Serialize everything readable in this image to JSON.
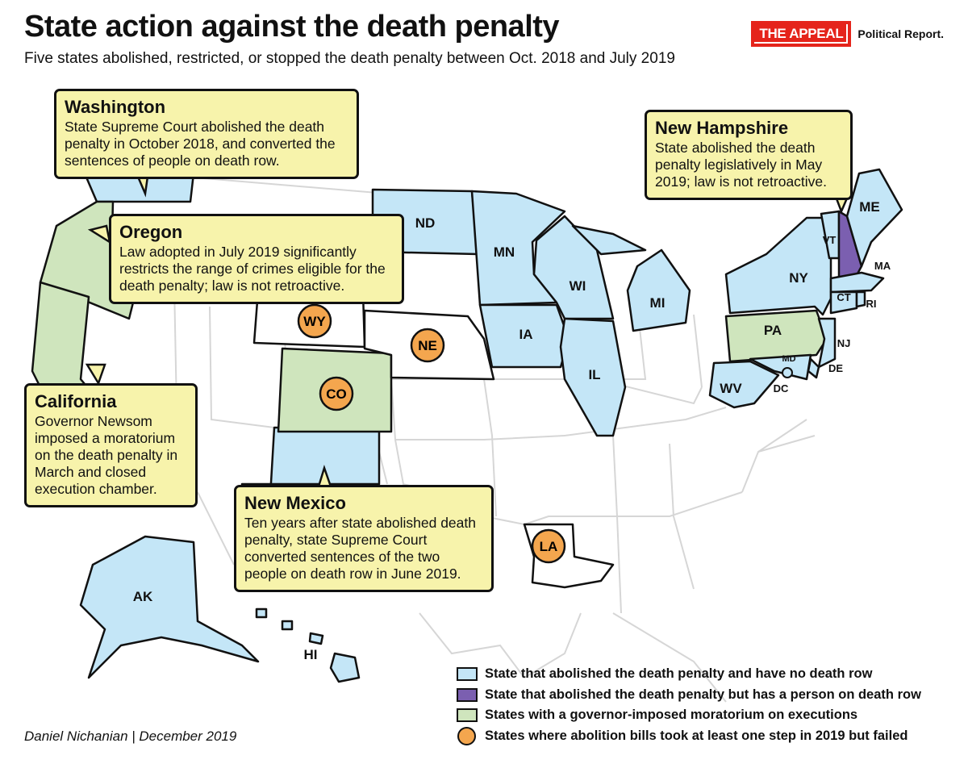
{
  "header": {
    "title": "State action against the death penalty",
    "subtitle": "Five states abolished, restricted, or stopped the death penalty between Oct. 2018 and July 2019",
    "brand_logo": "THE APPEAL",
    "brand_text": "Political Report."
  },
  "colors": {
    "abolished": "#c4e6f7",
    "abolished_death_row": "#7b5fb0",
    "moratorium": "#cfe5bd",
    "bill_failed": "#f4a64e",
    "other": "#ffffff",
    "callout": "#f7f3ab"
  },
  "state_labels": {
    "WA": "",
    "OR": "",
    "CA": "",
    "ND": "ND",
    "MN": "MN",
    "WI": "WI",
    "MI": "MI",
    "IA": "IA",
    "IL": "IL",
    "NY": "NY",
    "VT": "VT",
    "ME": "ME",
    "MA": "MA",
    "CT": "CT",
    "RI": "RI",
    "NJ": "NJ",
    "DE": "DE",
    "MD": "MD",
    "DC": "DC",
    "WV": "WV",
    "PA": "PA",
    "AK": "AK",
    "HI": "HI",
    "NM": ""
  },
  "failed_bill_states": [
    "WY",
    "NE",
    "CO",
    "LA"
  ],
  "callouts": {
    "washington": {
      "title": "Washington",
      "text": "State Supreme Court abolished the death penalty in October 2018, and converted the sentences of people on death row."
    },
    "oregon": {
      "title": "Oregon",
      "text": "Law adopted in July 2019 significantly restricts the range of crimes eligible for the death penalty; law is not retroactive."
    },
    "california": {
      "title": "California",
      "text": "Governor Newsom imposed a moratorium on the death penalty in March and closed execution chamber."
    },
    "new_mexico": {
      "title": "New Mexico",
      "text": "Ten years after state abolished death penalty, state Supreme Court converted sentences of the two people on death row in June 2019."
    },
    "new_hampshire": {
      "title": "New Hampshire",
      "text": "State abolished the death penalty legislatively in May 2019; law is not retroactive."
    }
  },
  "legend": [
    {
      "label": "State that abolished the death penalty and have no death row",
      "color": "#c4e6f7",
      "shape": "square"
    },
    {
      "label": "State that abolished the death penalty but has a person on death row",
      "color": "#7b5fb0",
      "shape": "square"
    },
    {
      "label": "States with a governor-imposed moratorium on executions",
      "color": "#cfe5bd",
      "shape": "square"
    },
    {
      "label": "States where abolition bills took at least one step in 2019 but failed",
      "color": "#f4a64e",
      "shape": "circle"
    }
  ],
  "footer": {
    "credit": "Daniel Nichanian | December 2019"
  }
}
